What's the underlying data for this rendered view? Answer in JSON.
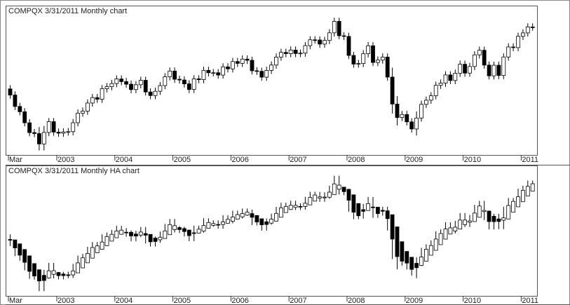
{
  "chart_data": [
    {
      "type": "candlestick",
      "title": "COMPQX  3/31/2011  Monthly chart",
      "categories": [
        "Mar",
        null,
        null,
        null,
        null,
        null,
        null,
        null,
        null,
        null,
        "2003",
        null,
        null,
        null,
        null,
        null,
        null,
        null,
        null,
        null,
        null,
        null,
        "2004",
        null,
        null,
        null,
        null,
        null,
        null,
        null,
        null,
        null,
        null,
        null,
        "2005",
        null,
        null,
        null,
        null,
        null,
        null,
        null,
        null,
        null,
        null,
        null,
        "2006",
        null,
        null,
        null,
        null,
        null,
        null,
        null,
        null,
        null,
        null,
        null,
        "2007",
        null,
        null,
        null,
        null,
        null,
        null,
        null,
        null,
        null,
        null,
        null,
        "2008",
        null,
        null,
        null,
        null,
        null,
        null,
        null,
        null,
        null,
        null,
        null,
        "2009",
        null,
        null,
        null,
        null,
        null,
        null,
        null,
        null,
        null,
        null,
        null,
        "2010",
        null,
        null,
        null,
        null,
        null,
        null,
        null,
        null,
        null,
        null,
        null,
        "2011",
        null,
        null
      ],
      "open": [
        1930,
        1845,
        1688,
        1615,
        1463,
        1328,
        1315,
        1172,
        1330,
        1479,
        1335,
        1320,
        1337,
        1341,
        1464,
        1596,
        1623,
        1735,
        1810,
        1787,
        1932,
        1960,
        2003,
        2066,
        2030,
        1994,
        1920,
        1987,
        2048,
        1887,
        1838,
        1897,
        1975,
        2096,
        2175,
        2062,
        2052,
        1999,
        1922,
        2068,
        2057,
        2185,
        2152,
        2152,
        2120,
        2233,
        2205,
        2306,
        2281,
        2340,
        2323,
        2179,
        2172,
        2091,
        2184,
        2258,
        2367,
        2432,
        2415,
        2464,
        2416,
        2422,
        2525,
        2605,
        2603,
        2546,
        2596,
        2701,
        2859,
        2661,
        2652,
        2390,
        2271,
        2279,
        2413,
        2523,
        2293,
        2326,
        2368,
        2092,
        1721,
        1536,
        1577,
        1476,
        1378,
        1529,
        1717,
        1774,
        1835,
        1979,
        2009,
        2122,
        2045,
        2145,
        2269,
        2147,
        2238,
        2398,
        2461,
        2257,
        2109,
        2255,
        2114,
        2369,
        2507,
        2498,
        2653,
        2700,
        2782
      ],
      "high": [
        1980,
        1895,
        1738,
        1665,
        1513,
        1378,
        1405,
        1420,
        1529,
        1529,
        1385,
        1387,
        1391,
        1514,
        1646,
        1673,
        1785,
        1860,
        1860,
        1982,
        2010,
        2053,
        2116,
        2116,
        2080,
        2044,
        2037,
        2098,
        2098,
        1937,
        1947,
        2025,
        2146,
        2225,
        2225,
        2112,
        2102,
        2049,
        2118,
        2118,
        2235,
        2235,
        2202,
        2202,
        2283,
        2283,
        2356,
        2356,
        2390,
        2390,
        2373,
        2229,
        2222,
        2234,
        2308,
        2417,
        2482,
        2482,
        2514,
        2514,
        2472,
        2575,
        2655,
        2655,
        2653,
        2646,
        2751,
        2909,
        2909,
        2711,
        2702,
        2440,
        2329,
        2463,
        2573,
        2573,
        2376,
        2418,
        2418,
        2222,
        1831,
        1627,
        1627,
        1526,
        1619,
        1767,
        1824,
        1885,
        2029,
        2059,
        2172,
        2172,
        2195,
        2319,
        2319,
        2288,
        2448,
        2511,
        2511,
        2307,
        2305,
        2305,
        2419,
        2557,
        2557,
        2703,
        2750,
        2832,
        2832
      ],
      "low": [
        1795,
        1638,
        1565,
        1413,
        1278,
        1265,
        1082,
        1082,
        1280,
        1285,
        1270,
        1270,
        1287,
        1291,
        1414,
        1546,
        1573,
        1685,
        1737,
        1737,
        1882,
        1910,
        1953,
        1980,
        1944,
        1870,
        1870,
        1937,
        1837,
        1788,
        1788,
        1847,
        1925,
        2046,
        2012,
        2002,
        1949,
        1872,
        1872,
        2007,
        2007,
        2102,
        2102,
        2070,
        2070,
        2155,
        2155,
        2231,
        2231,
        2273,
        2129,
        2122,
        2041,
        2041,
        2134,
        2208,
        2317,
        2365,
        2365,
        2366,
        2366,
        2372,
        2475,
        2553,
        2496,
        2496,
        2546,
        2651,
        2611,
        2602,
        2340,
        2221,
        2221,
        2229,
        2363,
        2243,
        2243,
        2276,
        2042,
        1591,
        1426,
        1486,
        1426,
        1328,
        1288,
        1479,
        1667,
        1724,
        1785,
        1929,
        1959,
        1995,
        1995,
        2095,
        2097,
        2097,
        2188,
        2348,
        2207,
        2059,
        2059,
        2064,
        2064,
        2319,
        2448,
        2448,
        2603,
        2650,
        2731
      ],
      "close": [
        1845,
        1688,
        1615,
        1463,
        1328,
        1315,
        1172,
        1330,
        1479,
        1335,
        1320,
        1337,
        1341,
        1464,
        1596,
        1623,
        1735,
        1810,
        1787,
        1932,
        1960,
        2003,
        2066,
        2030,
        1994,
        1920,
        1987,
        2048,
        1887,
        1838,
        1897,
        1975,
        2096,
        2175,
        2062,
        2052,
        1999,
        1922,
        2068,
        2057,
        2185,
        2152,
        2152,
        2120,
        2233,
        2205,
        2306,
        2281,
        2340,
        2323,
        2179,
        2172,
        2091,
        2184,
        2258,
        2367,
        2432,
        2415,
        2464,
        2416,
        2422,
        2525,
        2605,
        2603,
        2546,
        2596,
        2701,
        2859,
        2661,
        2652,
        2390,
        2271,
        2279,
        2413,
        2523,
        2293,
        2326,
        2368,
        2092,
        1721,
        1536,
        1577,
        1476,
        1378,
        1529,
        1717,
        1774,
        1835,
        1979,
        2009,
        2122,
        2045,
        2145,
        2269,
        2147,
        2238,
        2398,
        2461,
        2257,
        2109,
        2255,
        2114,
        2369,
        2507,
        2498,
        2653,
        2700,
        2782,
        2781
      ],
      "up_color": "#ffffff",
      "down_color": "#000000",
      "ylim": [
        1030,
        2960
      ]
    },
    {
      "type": "candlestick",
      "title": "COMPQX  3/31/2011  Monthly HA chart",
      "categories": [
        "Mar",
        null,
        null,
        null,
        null,
        null,
        null,
        null,
        null,
        null,
        "2003",
        null,
        null,
        null,
        null,
        null,
        null,
        null,
        null,
        null,
        null,
        null,
        "2004",
        null,
        null,
        null,
        null,
        null,
        null,
        null,
        null,
        null,
        null,
        null,
        "2005",
        null,
        null,
        null,
        null,
        null,
        null,
        null,
        null,
        null,
        null,
        null,
        "2006",
        null,
        null,
        null,
        null,
        null,
        null,
        null,
        null,
        null,
        null,
        null,
        "2007",
        null,
        null,
        null,
        null,
        null,
        null,
        null,
        null,
        null,
        null,
        null,
        "2008",
        null,
        null,
        null,
        null,
        null,
        null,
        null,
        null,
        null,
        null,
        null,
        "2009",
        null,
        null,
        null,
        null,
        null,
        null,
        null,
        null,
        null,
        null,
        null,
        "2010",
        null,
        null,
        null,
        null,
        null,
        null,
        null,
        null,
        null,
        null,
        null,
        "2011",
        null,
        null
      ],
      "open": [
        1900,
        1894,
        1831,
        1742,
        1641,
        1519,
        1421,
        1333,
        1292,
        1349,
        1378,
        1353,
        1341,
        1340,
        1372,
        1451,
        1531,
        1605,
        1689,
        1744,
        1802,
        1874,
        1928,
        1982,
        2015,
        2014,
        1986,
        1970,
        1994,
        1981,
        1922,
        1895,
        1916,
        1976,
        2056,
        2088,
        2073,
        2050,
        2006,
        2001,
        2032,
        2077,
        2123,
        2138,
        2137,
        2157,
        2188,
        2222,
        2258,
        2285,
        2309,
        2280,
        2228,
        2180,
        2159,
        2190,
        2252,
        2326,
        2375,
        2408,
        2424,
        2422,
        2448,
        2507,
        2556,
        2566,
        2569,
        2609,
        2695,
        2728,
        2693,
        2607,
        2469,
        2372,
        2359,
        2414,
        2411,
        2361,
        2354,
        2292,
        2100,
        1865,
        1711,
        1619,
        1523,
        1489,
        1556,
        1651,
        1728,
        1818,
        1906,
        1986,
        2035,
        2065,
        2136,
        2172,
        2183,
        2251,
        2341,
        2350,
        2267,
        2225,
        2205,
        2224,
        2331,
        2417,
        2497,
        2587,
        2664
      ],
      "high": [
        1980,
        1895,
        1831,
        1742,
        1641,
        1519,
        1421,
        1420,
        1529,
        1529,
        1385,
        1387,
        1391,
        1514,
        1646,
        1673,
        1785,
        1860,
        1860,
        1982,
        2010,
        2053,
        2116,
        2116,
        2080,
        2044,
        2037,
        2098,
        2098,
        1981,
        1947,
        2025,
        2146,
        2225,
        2225,
        2112,
        2102,
        2050,
        2118,
        2118,
        2235,
        2235,
        2202,
        2202,
        2283,
        2283,
        2356,
        2356,
        2390,
        2390,
        2373,
        2280,
        2228,
        2234,
        2308,
        2417,
        2482,
        2482,
        2514,
        2514,
        2472,
        2575,
        2655,
        2655,
        2653,
        2646,
        2751,
        2909,
        2909,
        2728,
        2702,
        2607,
        2469,
        2463,
        2573,
        2573,
        2411,
        2418,
        2418,
        2292,
        2100,
        1865,
        1711,
        1619,
        1619,
        1767,
        1824,
        1885,
        2029,
        2059,
        2172,
        2172,
        2195,
        2319,
        2319,
        2288,
        2448,
        2511,
        2511,
        2350,
        2305,
        2305,
        2419,
        2557,
        2557,
        2703,
        2750,
        2832,
        2832
      ],
      "low": [
        1795,
        1638,
        1565,
        1413,
        1278,
        1265,
        1082,
        1082,
        1280,
        1285,
        1270,
        1270,
        1287,
        1291,
        1372,
        1451,
        1531,
        1605,
        1689,
        1737,
        1802,
        1874,
        1928,
        1980,
        1944,
        1870,
        1870,
        1937,
        1837,
        1788,
        1788,
        1847,
        1916,
        1976,
        2012,
        2002,
        1949,
        1872,
        1872,
        2001,
        2007,
        2077,
        2102,
        2070,
        2070,
        2155,
        2155,
        2222,
        2231,
        2273,
        2129,
        2122,
        2041,
        2041,
        2134,
        2190,
        2252,
        2326,
        2365,
        2366,
        2366,
        2372,
        2448,
        2507,
        2496,
        2496,
        2546,
        2609,
        2611,
        2602,
        2340,
        2221,
        2221,
        2229,
        2359,
        2243,
        2243,
        2276,
        2042,
        1591,
        1426,
        1486,
        1426,
        1328,
        1288,
        1479,
        1556,
        1651,
        1728,
        1818,
        1906,
        1986,
        1995,
        2065,
        2097,
        2097,
        2183,
        2251,
        2207,
        2059,
        2059,
        2064,
        2064,
        2224,
        2331,
        2417,
        2497,
        2587,
        2664
      ],
      "close": [
        1888,
        1767,
        1652,
        1539,
        1396,
        1322,
        1244,
        1251,
        1405,
        1407,
        1328,
        1329,
        1339,
        1403,
        1530,
        1610,
        1679,
        1773,
        1799,
        1860,
        1946,
        1982,
        2035,
        2048,
        2012,
        1957,
        1954,
        2018,
        1968,
        1863,
        1868,
        1936,
        2036,
        2136,
        2119,
        2057,
        2026,
        1961,
        1995,
        2063,
        2121,
        2169,
        2152,
        2136,
        2177,
        2219,
        2256,
        2294,
        2311,
        2332,
        2251,
        2176,
        2132,
        2138,
        2221,
        2313,
        2400,
        2424,
        2440,
        2440,
        2419,
        2474,
        2565,
        2604,
        2575,
        2571,
        2649,
        2780,
        2760,
        2657,
        2521,
        2331,
        2275,
        2346,
        2468,
        2408,
        2310,
        2347,
        2230,
        1907,
        1629,
        1557,
        1527,
        1427,
        1454,
        1623,
        1746,
        1805,
        1907,
        1994,
        2066,
        2084,
        2095,
        2207,
        2208,
        2193,
        2318,
        2430,
        2359,
        2183,
        2182,
        2185,
        2242,
        2438,
        2503,
        2576,
        2677,
        2741,
        2782
      ],
      "up_color": "#ffffff",
      "down_color": "#000000",
      "ylim": [
        1030,
        2960
      ]
    }
  ]
}
